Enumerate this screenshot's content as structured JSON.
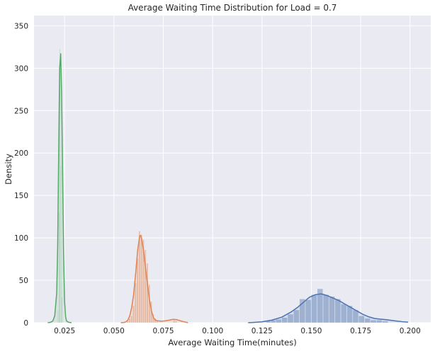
{
  "chart_data": {
    "type": "histogram-kde",
    "title": "Average Waiting Time Distribution for Load = 0.7",
    "xlabel": "Average Waiting Time(minutes)",
    "ylabel": "Density",
    "xlim": [
      0.0095,
      0.2105
    ],
    "ylim": [
      0,
      362
    ],
    "xticks": [
      "0.025",
      "0.050",
      "0.075",
      "0.100",
      "0.125",
      "0.150",
      "0.175",
      "0.200"
    ],
    "xtick_values": [
      0.025,
      0.05,
      0.075,
      0.1,
      0.125,
      0.15,
      0.175,
      0.2
    ],
    "yticks": [
      "0",
      "50",
      "100",
      "150",
      "200",
      "250",
      "300",
      "350"
    ],
    "ytick_values": [
      0,
      50,
      100,
      150,
      200,
      250,
      300,
      350
    ],
    "grid": true,
    "legend": "none",
    "background": "#eaeaf2",
    "series": [
      {
        "color": "#4c72b0",
        "bins": [
          [
            0.1272,
            0.1295,
            2
          ],
          [
            0.1295,
            0.132,
            3
          ],
          [
            0.132,
            0.135,
            4
          ],
          [
            0.135,
            0.138,
            6
          ],
          [
            0.138,
            0.141,
            10
          ],
          [
            0.141,
            0.144,
            15
          ],
          [
            0.144,
            0.147,
            28
          ],
          [
            0.147,
            0.15,
            27
          ],
          [
            0.15,
            0.153,
            33
          ],
          [
            0.153,
            0.156,
            40
          ],
          [
            0.156,
            0.159,
            33
          ],
          [
            0.159,
            0.162,
            31
          ],
          [
            0.162,
            0.165,
            28
          ],
          [
            0.165,
            0.168,
            22
          ],
          [
            0.168,
            0.171,
            20
          ],
          [
            0.171,
            0.174,
            15
          ],
          [
            0.174,
            0.177,
            8
          ],
          [
            0.177,
            0.18,
            5
          ],
          [
            0.18,
            0.183,
            3
          ],
          [
            0.183,
            0.186,
            3
          ],
          [
            0.186,
            0.189,
            2
          ]
        ],
        "kde": [
          [
            0.118,
            0
          ],
          [
            0.12,
            0.2
          ],
          [
            0.125,
            1
          ],
          [
            0.13,
            3
          ],
          [
            0.135,
            6.5
          ],
          [
            0.14,
            13
          ],
          [
            0.143,
            18
          ],
          [
            0.146,
            24
          ],
          [
            0.149,
            30
          ],
          [
            0.152,
            33
          ],
          [
            0.155,
            34
          ],
          [
            0.158,
            32
          ],
          [
            0.161,
            29
          ],
          [
            0.164,
            26
          ],
          [
            0.167,
            22
          ],
          [
            0.17,
            18
          ],
          [
            0.173,
            14
          ],
          [
            0.176,
            10
          ],
          [
            0.179,
            7
          ],
          [
            0.182,
            5
          ],
          [
            0.185,
            4.2
          ],
          [
            0.188,
            3.5
          ],
          [
            0.192,
            2.3
          ],
          [
            0.196,
            1.2
          ],
          [
            0.199,
            0.6
          ]
        ]
      },
      {
        "color": "#dd8452",
        "bins": [
          [
            0.0565,
            0.0575,
            2
          ],
          [
            0.0575,
            0.0585,
            5
          ],
          [
            0.0585,
            0.0595,
            8
          ],
          [
            0.0595,
            0.0605,
            20
          ],
          [
            0.0605,
            0.0615,
            47
          ],
          [
            0.0615,
            0.0625,
            76
          ],
          [
            0.0625,
            0.0635,
            108
          ],
          [
            0.0635,
            0.0645,
            104
          ],
          [
            0.0645,
            0.0655,
            98
          ],
          [
            0.0655,
            0.0665,
            86
          ],
          [
            0.0665,
            0.0675,
            70
          ],
          [
            0.0675,
            0.0685,
            45
          ],
          [
            0.0685,
            0.0695,
            25
          ],
          [
            0.0695,
            0.0705,
            10
          ],
          [
            0.0705,
            0.0715,
            5
          ],
          [
            0.0715,
            0.0725,
            3
          ],
          [
            0.08,
            0.081,
            3
          ],
          [
            0.081,
            0.082,
            2
          ]
        ],
        "kde": [
          [
            0.0535,
            0
          ],
          [
            0.055,
            0.2
          ],
          [
            0.056,
            1
          ],
          [
            0.057,
            3
          ],
          [
            0.058,
            8
          ],
          [
            0.059,
            18
          ],
          [
            0.06,
            34
          ],
          [
            0.061,
            58
          ],
          [
            0.062,
            85
          ],
          [
            0.063,
            102
          ],
          [
            0.0635,
            103
          ],
          [
            0.064,
            99
          ],
          [
            0.065,
            85
          ],
          [
            0.066,
            65
          ],
          [
            0.067,
            45
          ],
          [
            0.068,
            27
          ],
          [
            0.069,
            14
          ],
          [
            0.07,
            6
          ],
          [
            0.071,
            3
          ],
          [
            0.072,
            2.3
          ],
          [
            0.074,
            1.8
          ],
          [
            0.076,
            2.2
          ],
          [
            0.078,
            3
          ],
          [
            0.08,
            4
          ],
          [
            0.082,
            3.5
          ],
          [
            0.084,
            2
          ],
          [
            0.086,
            0.8
          ],
          [
            0.0875,
            0
          ]
        ]
      },
      {
        "color": "#55a868",
        "bins": [
          [
            0.0215,
            0.022,
            15
          ],
          [
            0.022,
            0.0225,
            130
          ],
          [
            0.0225,
            0.023,
            323
          ],
          [
            0.023,
            0.0235,
            185
          ],
          [
            0.0235,
            0.024,
            30
          ]
        ],
        "kde": [
          [
            0.0165,
            0
          ],
          [
            0.018,
            0.5
          ],
          [
            0.019,
            2
          ],
          [
            0.02,
            8
          ],
          [
            0.021,
            35
          ],
          [
            0.0215,
            90
          ],
          [
            0.022,
            200
          ],
          [
            0.0225,
            300
          ],
          [
            0.023,
            317
          ],
          [
            0.0235,
            270
          ],
          [
            0.024,
            175
          ],
          [
            0.0245,
            80
          ],
          [
            0.025,
            25
          ],
          [
            0.0255,
            7
          ],
          [
            0.026,
            2
          ],
          [
            0.027,
            0.5
          ],
          [
            0.0285,
            0
          ]
        ]
      }
    ]
  }
}
